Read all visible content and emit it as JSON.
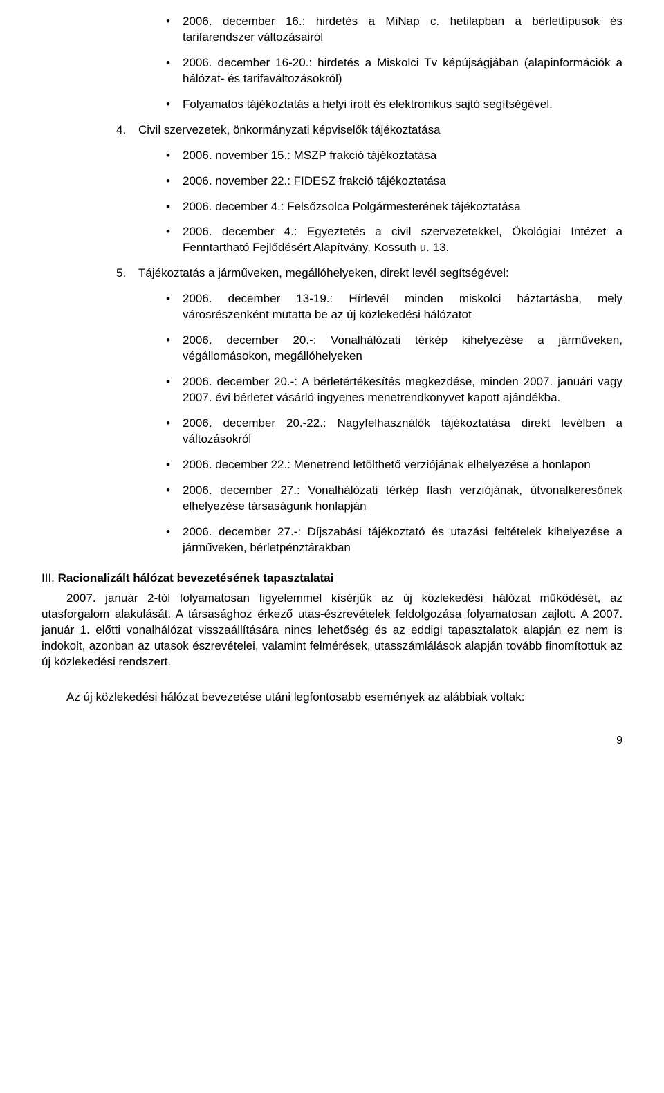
{
  "list3": {
    "items": [
      "2006. december 16.: hirdetés a MiNap c. hetilapban a bérlettípusok és tarifarendszer változásairól",
      "2006. december 16-20.: hirdetés a Miskolci Tv képújságjában (alapinformációk a hálózat- és tarifaváltozásokról)",
      "Folyamatos tájékoztatás a helyi írott és elektronikus sajtó segítségével."
    ]
  },
  "item4": {
    "num": "4.",
    "text": "Civil szervezetek, önkormányzati képviselők tájékoztatása",
    "sub": [
      "2006. november 15.: MSZP frakció tájékoztatása",
      "2006. november 22.: FIDESZ frakció tájékoztatása",
      "2006. december 4.: Felsőzsolca Polgármesterének tájékoztatása",
      "2006. december 4.: Egyeztetés a civil szervezetekkel, Ökológiai Intézet a Fenntartható Fejlődésért Alapítvány, Kossuth u. 13."
    ]
  },
  "item5": {
    "num": "5.",
    "text": "Tájékoztatás a járműveken, megállóhelyeken, direkt levél segítségével:",
    "sub": [
      "2006. december 13-19.: Hírlevél minden miskolci háztartásba, mely városrészenként mutatta be az új közlekedési hálózatot",
      "2006. december 20.-: Vonalhálózati térkép kihelyezése a járműveken, végállomásokon, megállóhelyeken",
      "2006. december 20.-: A bérletértékesítés megkezdése, minden 2007. januári vagy 2007. évi bérletet vásárló ingyenes menetrendkönyvet kapott ajándékba.",
      "2006. december 20.-22.: Nagyfelhasználók tájékoztatása direkt levélben a változásokról",
      "2006. december 22.: Menetrend letölthető verziójának elhelyezése a honlapon",
      "2006. december 27.: Vonalhálózati térkép flash verziójának, útvonalkeresőnek elhelyezése társaságunk honlapján",
      "2006. december 27.-: Díjszabási tájékoztató és utazási feltételek kihelyezése a járműveken, bérletpénztárakban"
    ]
  },
  "section3": {
    "num": "III.",
    "heading": "Racionalizált hálózat bevezetésének tapasztalatai",
    "p1": "2007. január 2-tól folyamatosan figyelemmel kísérjük az új közlekedési hálózat működését, az utasforgalom alakulását. A társasághoz érkező utas-észrevételek feldolgozása folyamatosan zajlott. A 2007. január 1. előtti vonalhálózat visszaállítására nincs lehetőség és az eddigi tapasztalatok alapján ez nem is indokolt, azonban az utasok észrevételei, valamint felmérések, utasszámlálások alapján tovább finomítottuk az új közlekedési rendszert.",
    "p2": "Az új közlekedési hálózat bevezetése utáni legfontosabb események az alábbiak voltak:"
  },
  "pageNumber": "9",
  "bullet": "•"
}
